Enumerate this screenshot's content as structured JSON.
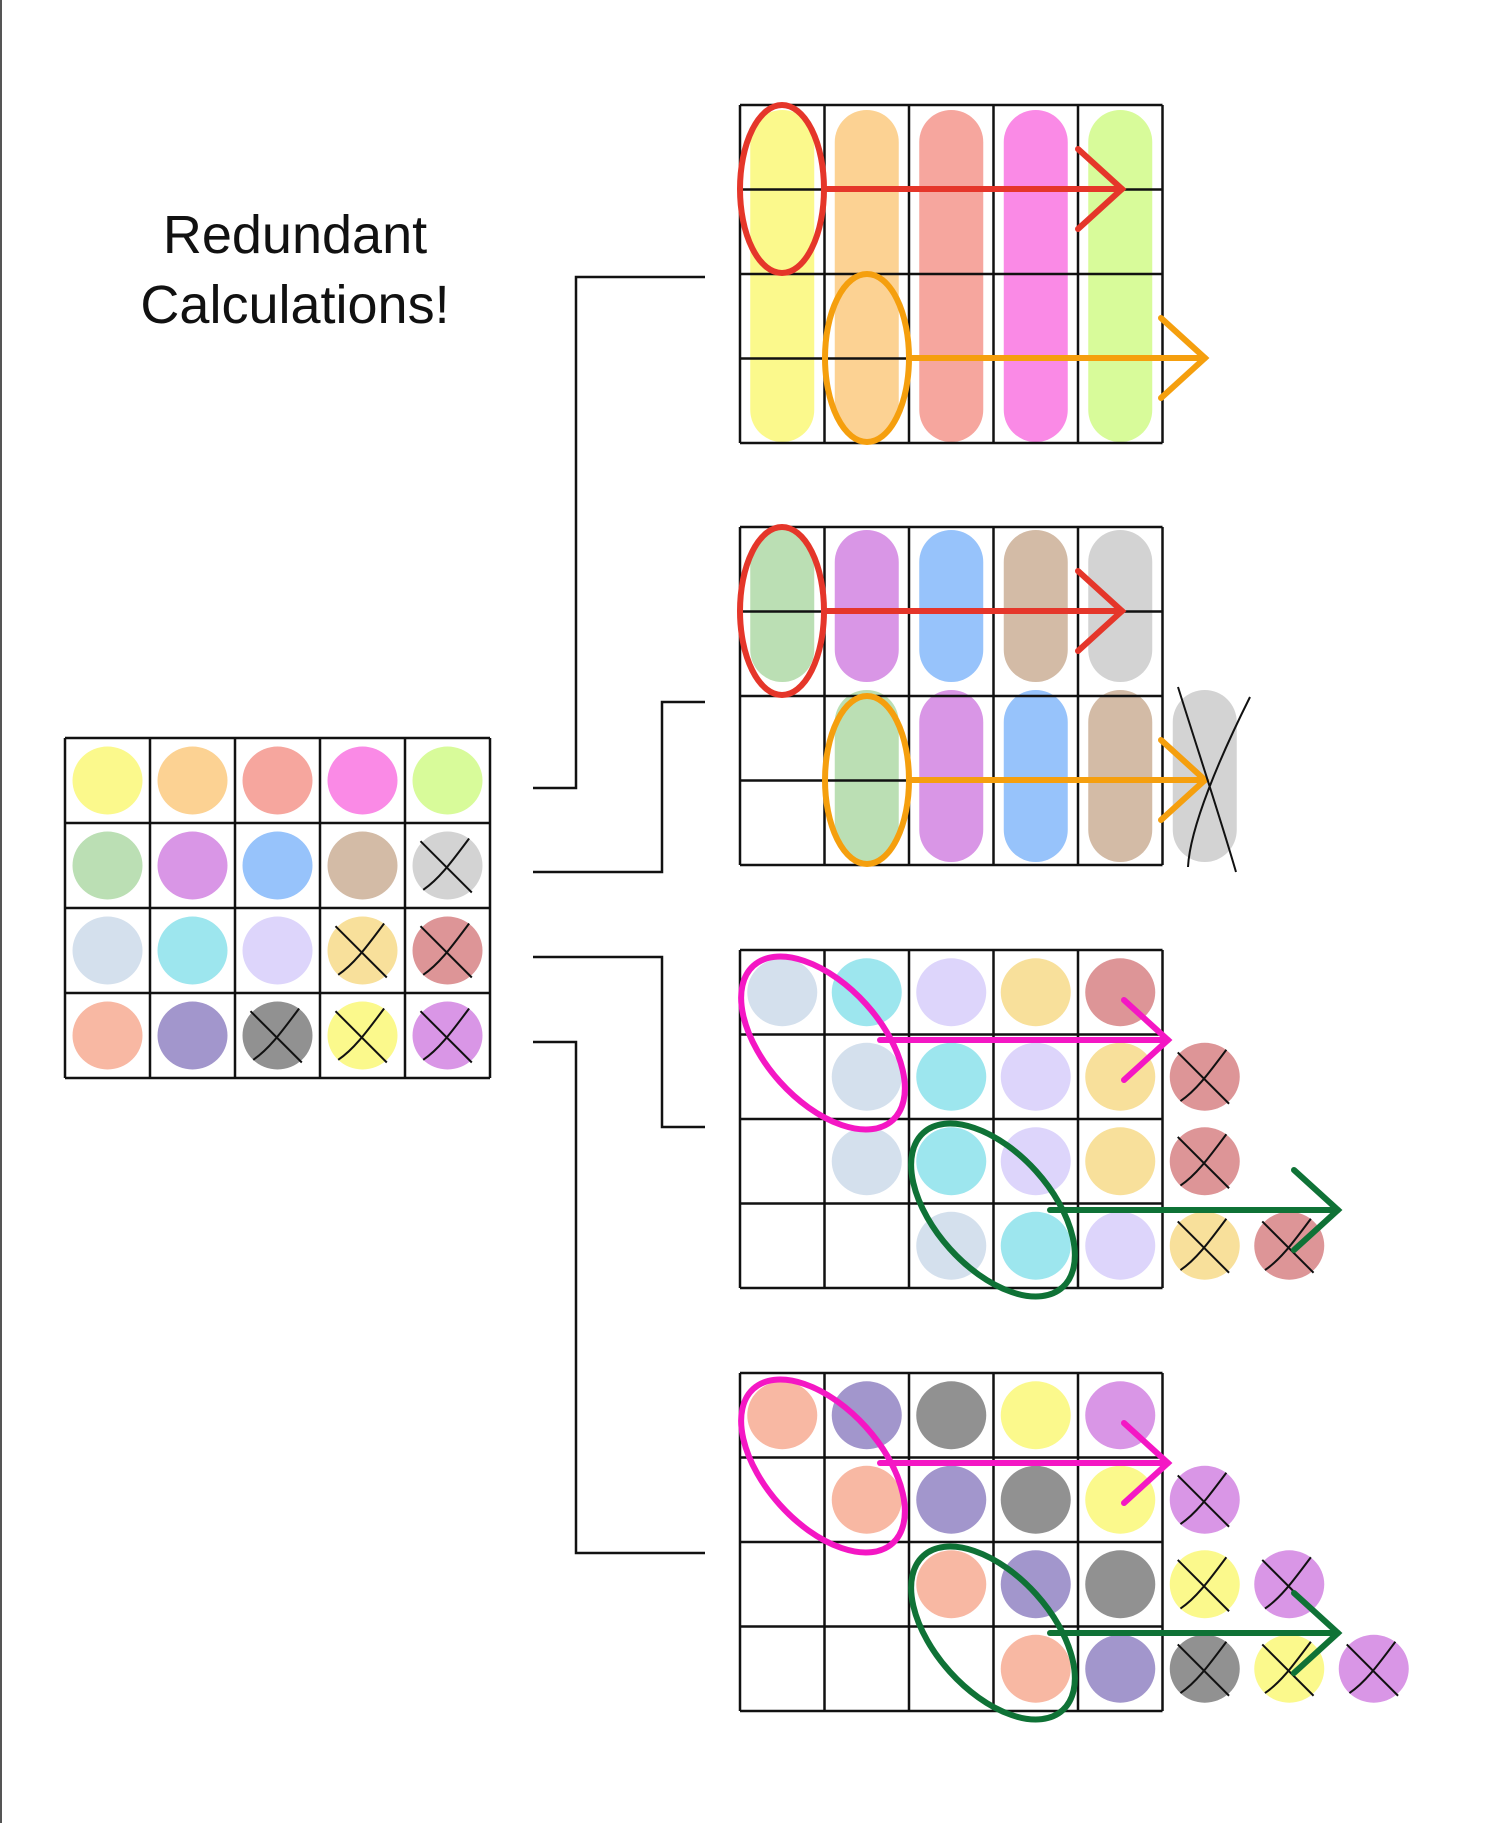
{
  "title": {
    "line1": "Redundant",
    "line2": "Calculations!"
  },
  "colors": {
    "yellow": "#fbf98c",
    "orange": "#fcd293",
    "salmon": "#f6a69e",
    "pink": "#fa8ae6",
    "lime": "#d8fb9a",
    "green": "#bbdfb4",
    "purple": "#d996e6",
    "blue": "#97c3fb",
    "tan": "#d3bba6",
    "grey": "#d3d3d3",
    "pale_blue": "#d4e0ed",
    "cyan": "#9de6ee",
    "lavender": "#ddd5fb",
    "gold": "#f8e09b",
    "rose": "#dd9597",
    "peach": "#f8b8a3",
    "violet": "#a296cc",
    "dark_grey": "#919191",
    "red_stroke": "#e5362a",
    "orange_stroke": "#f59f0e",
    "magenta_stroke": "#f417c4",
    "green_stroke": "#0f7236"
  },
  "source_grid": {
    "rows": [
      [
        {
          "c": "yellow",
          "x": false
        },
        {
          "c": "orange",
          "x": false
        },
        {
          "c": "salmon",
          "x": false
        },
        {
          "c": "pink",
          "x": false
        },
        {
          "c": "lime",
          "x": false
        }
      ],
      [
        {
          "c": "green",
          "x": false
        },
        {
          "c": "purple",
          "x": false
        },
        {
          "c": "blue",
          "x": false
        },
        {
          "c": "tan",
          "x": false
        },
        {
          "c": "grey",
          "x": true
        }
      ],
      [
        {
          "c": "pale_blue",
          "x": false
        },
        {
          "c": "cyan",
          "x": false
        },
        {
          "c": "lavender",
          "x": false
        },
        {
          "c": "gold",
          "x": true
        },
        {
          "c": "rose",
          "x": true
        }
      ],
      [
        {
          "c": "peach",
          "x": false
        },
        {
          "c": "violet",
          "x": false
        },
        {
          "c": "dark_grey",
          "x": true
        },
        {
          "c": "yellow",
          "x": true
        },
        {
          "c": "purple",
          "x": true
        }
      ]
    ]
  }
}
